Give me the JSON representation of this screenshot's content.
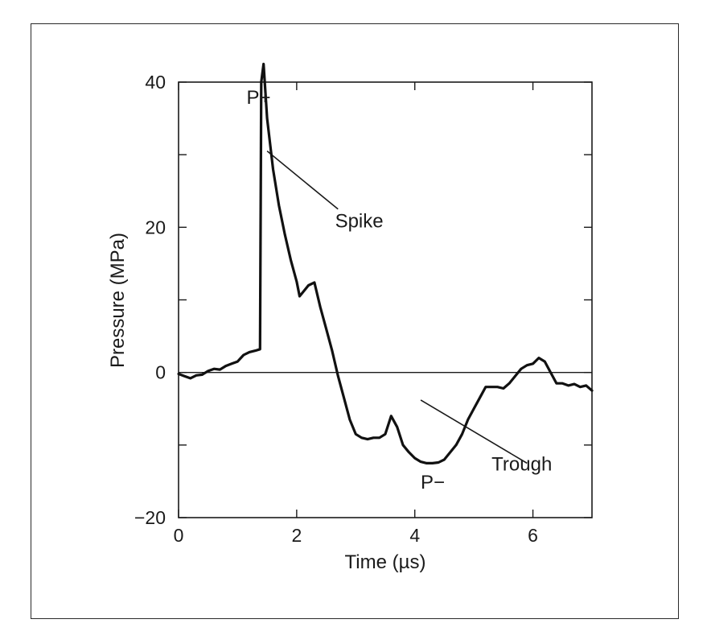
{
  "chart_data": {
    "type": "line",
    "xlabel": "Time (µs)",
    "ylabel": "Pressure (MPa)",
    "xlim": [
      0,
      7
    ],
    "ylim": [
      -20,
      40
    ],
    "x_ticks": [
      0,
      2,
      4,
      6
    ],
    "x_tick_labels": [
      "0",
      "2",
      "4",
      "6"
    ],
    "y_ticks": [
      -20,
      0,
      20,
      40
    ],
    "y_tick_labels": [
      "−20",
      "0",
      "20",
      "40"
    ],
    "grid": false,
    "zero_line": true,
    "series": [
      {
        "x": [
          0.0,
          0.1,
          0.2,
          0.3,
          0.4,
          0.5,
          0.6,
          0.7,
          0.8,
          0.9,
          1.0,
          1.1,
          1.2,
          1.3,
          1.38,
          1.4,
          1.44,
          1.5,
          1.6,
          1.7,
          1.8,
          1.9,
          2.0,
          2.05,
          2.1,
          2.2,
          2.3,
          2.4,
          2.5,
          2.6,
          2.7,
          2.8,
          2.9,
          3.0,
          3.1,
          3.2,
          3.3,
          3.4,
          3.5,
          3.6,
          3.7,
          3.8,
          3.9,
          4.0,
          4.1,
          4.2,
          4.3,
          4.4,
          4.5,
          4.6,
          4.7,
          4.8,
          4.9,
          5.0,
          5.1,
          5.2,
          5.3,
          5.4,
          5.5,
          5.6,
          5.7,
          5.8,
          5.9,
          6.0,
          6.1,
          6.2,
          6.3,
          6.4,
          6.5,
          6.6,
          6.7,
          6.8,
          6.9,
          7.0
        ],
        "y": [
          -0.2,
          -0.5,
          -0.8,
          -0.4,
          -0.3,
          0.2,
          0.5,
          0.4,
          0.9,
          1.2,
          1.5,
          2.4,
          2.8,
          3.0,
          3.2,
          40.0,
          42.5,
          35.0,
          28.0,
          23.0,
          19.0,
          15.5,
          12.5,
          10.5,
          11.0,
          12.0,
          12.4,
          9.0,
          6.0,
          3.0,
          -0.5,
          -3.5,
          -6.5,
          -8.5,
          -9.0,
          -9.2,
          -9.0,
          -9.0,
          -8.5,
          -6.0,
          -7.5,
          -10.0,
          -11.0,
          -11.8,
          -12.3,
          -12.5,
          -12.5,
          -12.4,
          -12.0,
          -11.0,
          -10.0,
          -8.5,
          -6.5,
          -5.0,
          -3.5,
          -2.0,
          -2.0,
          -2.0,
          -2.2,
          -1.5,
          -0.5,
          0.5,
          1.0,
          1.2,
          2.0,
          1.5,
          0.0,
          -1.5,
          -1.5,
          -1.8,
          -1.6,
          -2.0,
          -1.8,
          -2.5
        ]
      }
    ],
    "annotations": [
      {
        "id": "p-plus",
        "text": "P+",
        "x": 1.15,
        "y": 37.0
      },
      {
        "id": "spike",
        "text": "Spike",
        "x": 2.65,
        "y": 20.0
      },
      {
        "id": "p-minus",
        "text": "P−",
        "x": 4.1,
        "y": -16.0
      },
      {
        "id": "trough",
        "text": "Trough",
        "x": 5.3,
        "y": -13.5
      }
    ],
    "leader_lines": [
      {
        "id": "spike-leader",
        "from": [
          1.5,
          30.5
        ],
        "to": [
          2.7,
          22.5
        ]
      },
      {
        "id": "trough-leader",
        "from": [
          4.1,
          -3.8
        ],
        "to": [
          5.9,
          -12.5
        ]
      }
    ]
  }
}
